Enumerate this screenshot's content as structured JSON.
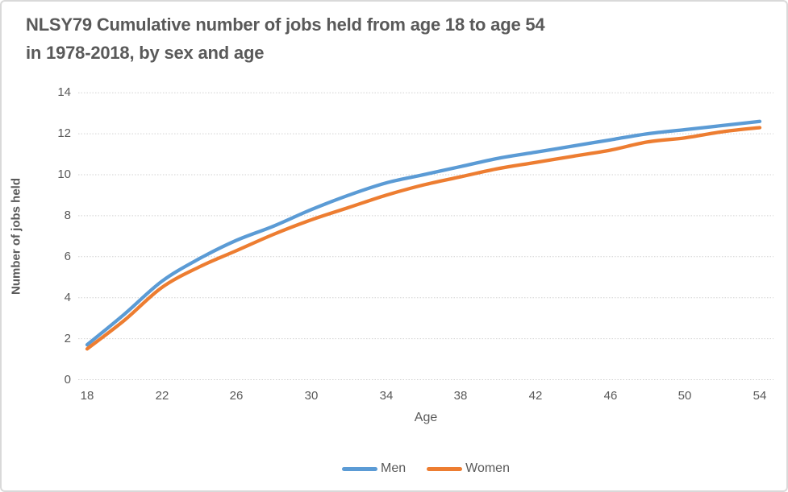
{
  "page": {
    "background": "#ffffff",
    "border_color": "#d9d9d9"
  },
  "chart_data": {
    "type": "line",
    "title": "NLSY79 Cumulative number of jobs held from age 18 to age 54 in 1978-2018, by sex and age",
    "title_lines": [
      "NLSY79 Cumulative number of jobs held from age 18 to age 54",
      "in 1978-2018, by sex and age"
    ],
    "xlabel": "Age",
    "ylabel": "Number of jobs held",
    "xlim": [
      18,
      54
    ],
    "ylim": [
      0,
      14
    ],
    "x_ticks": [
      18,
      22,
      26,
      30,
      34,
      38,
      42,
      46,
      50,
      54
    ],
    "y_ticks": [
      0,
      2,
      4,
      6,
      8,
      10,
      12,
      14
    ],
    "grid": "horizontal dotted gridlines only",
    "legend_position": "bottom-center",
    "x": [
      18,
      20,
      22,
      24,
      26,
      28,
      30,
      32,
      34,
      36,
      38,
      40,
      42,
      44,
      46,
      48,
      50,
      52,
      54
    ],
    "series": [
      {
        "name": "Men",
        "color": "#5B9BD5",
        "values": [
          1.7,
          3.2,
          4.8,
          5.9,
          6.8,
          7.5,
          8.3,
          9.0,
          9.6,
          10.0,
          10.4,
          10.8,
          11.1,
          11.4,
          11.7,
          12.0,
          12.2,
          12.4,
          12.6
        ]
      },
      {
        "name": "Women",
        "color": "#ED7D31",
        "values": [
          1.5,
          2.9,
          4.5,
          5.5,
          6.3,
          7.1,
          7.8,
          8.4,
          9.0,
          9.5,
          9.9,
          10.3,
          10.6,
          10.9,
          11.2,
          11.6,
          11.8,
          12.1,
          12.3
        ]
      }
    ],
    "text_color": "#595959",
    "grid_color": "#d2d2d2"
  }
}
